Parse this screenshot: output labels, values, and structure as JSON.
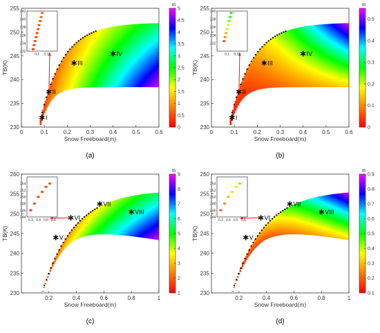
{
  "colormap_stops": [
    "#ff0000",
    "#ff7f00",
    "#ffff00",
    "#00ff00",
    "#00ffff",
    "#0000ff",
    "#ff00ff"
  ],
  "axis_text_color": "#333333",
  "marker_color": "#000000",
  "arrow_color": "#e41a1c",
  "chart_data": [
    {
      "panel_label": "(a)",
      "type": "heatmap",
      "xlabel": "Snow Freeboard(m)",
      "ylabel": "TB(K)",
      "xlim": [
        0,
        0.6
      ],
      "ylim": [
        230,
        255
      ],
      "xticks": [
        "0",
        "0.1",
        "0.2",
        "0.3",
        "0.4",
        "0.5",
        "0.6"
      ],
      "yticks": [
        "230",
        "235",
        "240",
        "245",
        "250",
        "255"
      ],
      "colorbar": {
        "unit": "m",
        "min": 0,
        "max": 5,
        "ticks": [
          "0",
          "0.5",
          "1",
          "1.5",
          "2",
          "2.5",
          "3",
          "3.5",
          "4",
          "4.5",
          "5"
        ]
      },
      "color_field": "right",
      "region": {
        "x0": 0.08,
        "x1": 0.6,
        "low_min": 230,
        "low_max": 238.5,
        "high_min": 231,
        "high_max": 252,
        "tau_low": 0.045,
        "tau_high": 0.1
      },
      "annotations": [
        {
          "label": "I",
          "x": 0.09,
          "y": 232
        },
        {
          "label": "II",
          "x": 0.12,
          "y": 237.5
        },
        {
          "label": "III",
          "x": 0.23,
          "y": 243.5
        },
        {
          "label": "IV",
          "x": 0.4,
          "y": 245.5
        }
      ],
      "inset": {
        "xlim": [
          0.05,
          0.2
        ],
        "ylim": [
          232,
          242
        ],
        "xticks": [
          "0.1",
          "0.15"
        ],
        "yticks": [
          "232",
          "234",
          "236",
          "238",
          "240",
          "242"
        ],
        "points": [
          [
            0.08,
            232.5
          ],
          [
            0.085,
            233.5
          ],
          [
            0.09,
            234.5
          ],
          [
            0.095,
            235.5
          ],
          [
            0.1,
            236.5
          ],
          [
            0.105,
            237.5
          ],
          [
            0.11,
            238.5
          ],
          [
            0.115,
            239.5
          ],
          [
            0.12,
            240.5
          ],
          [
            0.125,
            241.5
          ]
        ]
      }
    },
    {
      "panel_label": "(b)",
      "type": "heatmap",
      "xlabel": "Snow Freeboard(m)",
      "ylabel": "TB(K)",
      "xlim": [
        0,
        0.6
      ],
      "ylim": [
        230,
        255
      ],
      "xticks": [
        "0",
        "0.1",
        "0.2",
        "0.3",
        "0.4",
        "0.5",
        "0.6"
      ],
      "yticks": [
        "230",
        "235",
        "240",
        "245",
        "250",
        "255"
      ],
      "colorbar": {
        "unit": "m",
        "min": 0,
        "max": 0.55,
        "ticks": [
          "0",
          "0.1",
          "0.2",
          "0.3",
          "0.4",
          "0.5"
        ]
      },
      "color_field": "top",
      "region": {
        "x0": 0.08,
        "x1": 0.6,
        "low_min": 230,
        "low_max": 238.5,
        "high_min": 231,
        "high_max": 252,
        "tau_low": 0.045,
        "tau_high": 0.1
      },
      "annotations": [
        {
          "label": "I",
          "x": 0.09,
          "y": 232
        },
        {
          "label": "II",
          "x": 0.12,
          "y": 237.5
        },
        {
          "label": "III",
          "x": 0.23,
          "y": 243.5
        },
        {
          "label": "IV",
          "x": 0.4,
          "y": 245.5
        }
      ],
      "inset": {
        "xlim": [
          0.05,
          0.2
        ],
        "ylim": [
          230,
          240
        ],
        "xticks": [
          "0.1",
          "0.15"
        ],
        "yticks": [
          "232",
          "234",
          "236",
          "238",
          "240"
        ],
        "points": [
          [
            0.085,
            232.5
          ],
          [
            0.09,
            233.5
          ],
          [
            0.095,
            234.5
          ],
          [
            0.1,
            235.5
          ],
          [
            0.105,
            236.5
          ],
          [
            0.11,
            237.5
          ],
          [
            0.115,
            238.5
          ],
          [
            0.12,
            239.5
          ]
        ]
      }
    },
    {
      "panel_label": "(c)",
      "type": "heatmap",
      "xlabel": "Snow Freeboard(m)",
      "ylabel": "TB(K)",
      "xlim": [
        0,
        1
      ],
      "ylim": [
        230,
        260
      ],
      "xticks": [
        "0.2",
        "0.4",
        "0.6",
        "0.8",
        "1"
      ],
      "yticks": [
        "230",
        "235",
        "240",
        "245",
        "250",
        "255",
        "260"
      ],
      "colorbar": {
        "unit": "m",
        "min": 1,
        "max": 9,
        "ticks": [
          "1",
          "2",
          "3",
          "4",
          "5",
          "6",
          "7",
          "8",
          "9"
        ]
      },
      "color_field": "right",
      "region": {
        "x0": 0.15,
        "x1": 1.0,
        "low_min": 230,
        "low_max": 247,
        "high_min": 230,
        "high_max": 256,
        "tau_low": 0.15,
        "tau_high": 0.23,
        "dip": 3.5
      },
      "annotations": [
        {
          "label": "V",
          "x": 0.25,
          "y": 244
        },
        {
          "label": "VI",
          "x": 0.36,
          "y": 249
        },
        {
          "label": "VII",
          "x": 0.57,
          "y": 252.5
        },
        {
          "label": "VIII",
          "x": 0.8,
          "y": 250.5
        }
      ],
      "inset": {
        "xlim": [
          0.25,
          0.65
        ],
        "ylim": [
          244,
          256
        ],
        "xticks": [
          "0.3",
          "0.4",
          "0.5",
          "0.6"
        ],
        "yticks": [
          "244",
          "246",
          "248",
          "250",
          "252",
          "254"
        ],
        "points": [
          [
            0.3,
            246
          ],
          [
            0.35,
            248
          ],
          [
            0.4,
            250
          ],
          [
            0.45,
            251.5
          ],
          [
            0.5,
            253
          ],
          [
            0.55,
            254
          ]
        ]
      }
    },
    {
      "panel_label": "(d)",
      "type": "heatmap",
      "xlabel": "Snow Freeboard(m)",
      "ylabel": "TB(K)",
      "xlim": [
        0,
        1
      ],
      "ylim": [
        230,
        260
      ],
      "xticks": [
        "0.2",
        "0.4",
        "0.6",
        "0.8",
        "1"
      ],
      "yticks": [
        "230",
        "235",
        "240",
        "245",
        "250",
        "255",
        "260"
      ],
      "colorbar": {
        "unit": "m",
        "min": 0.1,
        "max": 0.9,
        "ticks": [
          "0.1",
          "0.2",
          "0.3",
          "0.4",
          "0.5",
          "0.6",
          "0.7",
          "0.8",
          "0.9"
        ]
      },
      "color_field": "top",
      "region": {
        "x0": 0.15,
        "x1": 1.0,
        "low_min": 230,
        "low_max": 247,
        "high_min": 230,
        "high_max": 256,
        "tau_low": 0.15,
        "tau_high": 0.23,
        "dip": 3.5
      },
      "annotations": [
        {
          "label": "V",
          "x": 0.25,
          "y": 244
        },
        {
          "label": "VI",
          "x": 0.36,
          "y": 249
        },
        {
          "label": "VII",
          "x": 0.57,
          "y": 252.5
        },
        {
          "label": "VIII",
          "x": 0.8,
          "y": 250.5
        }
      ],
      "inset": {
        "xlim": [
          0.25,
          0.65
        ],
        "ylim": [
          244,
          256
        ],
        "xticks": [
          "0.3",
          "0.4",
          "0.5",
          "0.6"
        ],
        "yticks": [
          "244",
          "246",
          "248",
          "250",
          "252",
          "254"
        ],
        "points": [
          [
            0.3,
            246
          ],
          [
            0.35,
            248
          ],
          [
            0.4,
            250
          ],
          [
            0.45,
            251.5
          ],
          [
            0.5,
            253
          ],
          [
            0.55,
            254
          ]
        ]
      }
    }
  ]
}
